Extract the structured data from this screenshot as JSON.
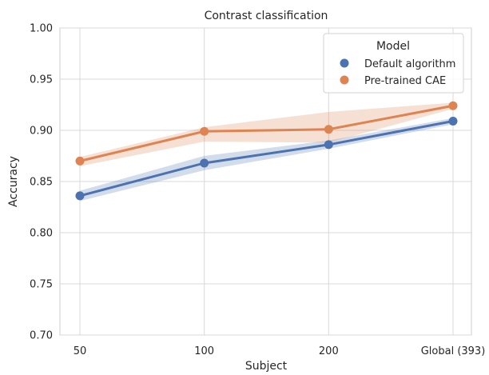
{
  "chart_data": {
    "type": "line",
    "title": "Contrast classification",
    "xlabel": "Subject",
    "ylabel": "Accuracy",
    "categories": [
      "50",
      "100",
      "200",
      "Global (393)"
    ],
    "ylim": [
      0.7,
      1.0
    ],
    "yticks": [
      "0.70",
      "0.75",
      "0.80",
      "0.85",
      "0.90",
      "0.95",
      "1.00"
    ],
    "grid": true,
    "legend": {
      "title": "Model",
      "placement": "top-right"
    },
    "series": [
      {
        "name": "Default algorithm",
        "color": "#4c72b0",
        "values": [
          0.836,
          0.868,
          0.886,
          0.909
        ],
        "ci_low": [
          0.831,
          0.861,
          0.882,
          0.906
        ],
        "ci_high": [
          0.841,
          0.875,
          0.89,
          0.912
        ]
      },
      {
        "name": "Pre-trained CAE",
        "color": "#dd8452",
        "values": [
          0.87,
          0.899,
          0.901,
          0.924
        ],
        "ci_low": [
          0.865,
          0.889,
          0.888,
          0.921
        ],
        "ci_high": [
          0.874,
          0.903,
          0.918,
          0.927
        ]
      }
    ]
  }
}
